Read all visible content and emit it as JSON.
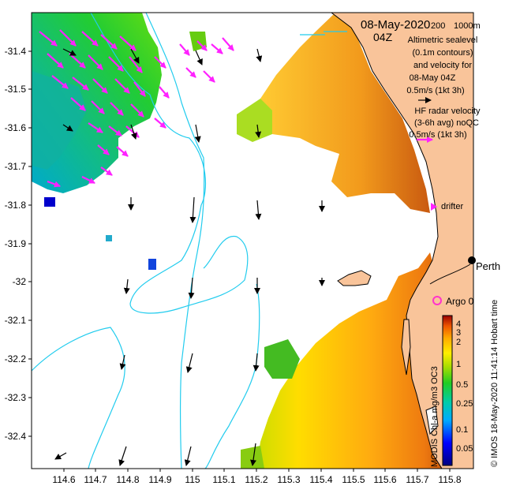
{
  "header": {
    "date": "08-May-2020",
    "hour": "04Z",
    "depth_label_200": "200",
    "depth_label_1000": "1000m"
  },
  "legend": {
    "altimetric_lines": [
      "Altimetric sealevel",
      "(0.1m contours)",
      "and velocity for",
      "08-May 04Z",
      "0.5m/s (1kt 3h)"
    ],
    "hf_lines": [
      "HF radar velocity",
      "(3-6h avg) noQC",
      "0.5m/s (1kt 3h)"
    ],
    "drifter": "drifter",
    "argo": "Argo 0",
    "city": "Perth"
  },
  "credits": {
    "imos": "© IMOS 18-May-2020 11:41:14 Hobart time",
    "colorbar_title": "MODIS Chl-a mg/m3 OC3"
  },
  "colorbar": {
    "ticks": [
      "4",
      "3",
      "2",
      "1",
      "0.5",
      "0.25",
      "0.1",
      "0.05"
    ]
  },
  "axes": {
    "x_ticks": [
      "114.6",
      "114.7",
      "114.8",
      "114.9",
      "115",
      "115.1",
      "115.2",
      "115.3",
      "115.4",
      "115.5",
      "115.6",
      "115.7",
      "115.8"
    ],
    "y_ticks": [
      "-31.4",
      "-31.5",
      "-31.6",
      "-31.7",
      "-31.8",
      "-31.9",
      "-32",
      "-32.1",
      "-32.2",
      "-32.3",
      "-32.4"
    ],
    "lon_range": [
      114.515,
      115.89
    ],
    "lat_range": [
      -32.5,
      -31.318
    ]
  },
  "colors": {
    "land": "#f9c49a",
    "contour": "#22ccee",
    "hf_arrow": "#ff22ff",
    "argo": "#ff33cc"
  }
}
